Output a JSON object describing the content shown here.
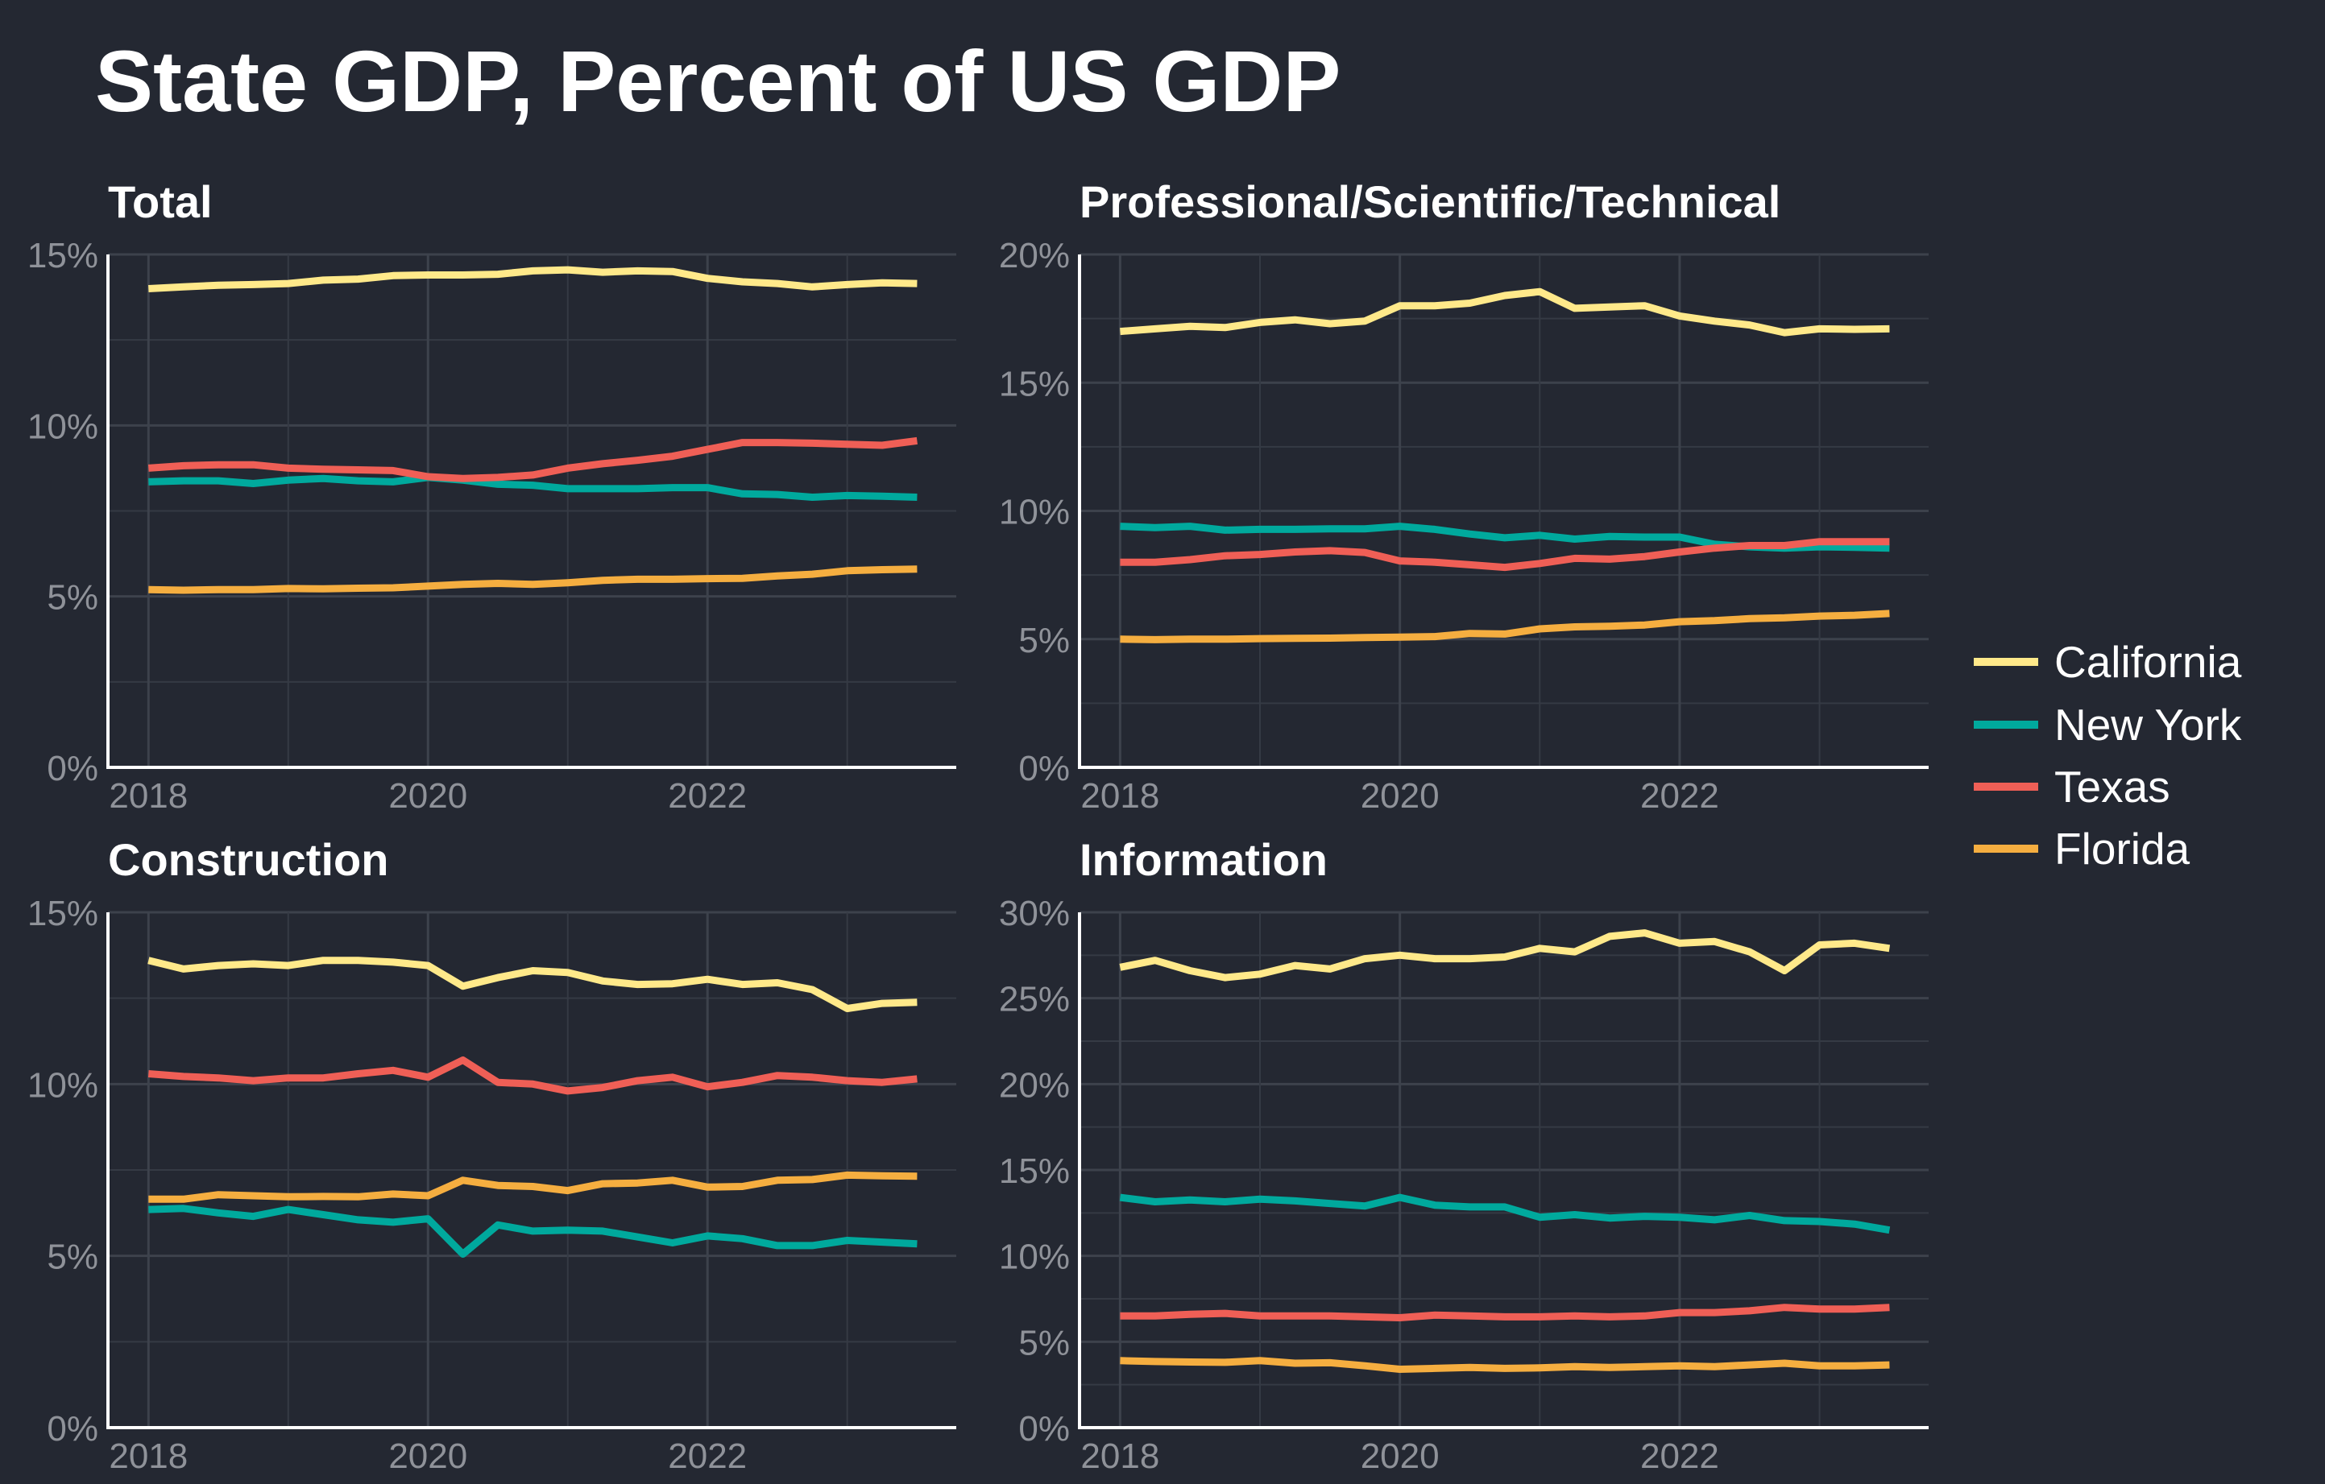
{
  "title": "State GDP, Percent of US GDP",
  "chart_data": {
    "type": "line",
    "legend": {
      "placement": "right",
      "entries": [
        "California",
        "New York",
        "Texas",
        "Florida"
      ]
    },
    "colors": {
      "California": "#ffe98a",
      "New York": "#00a99d",
      "Texas": "#ef5f56",
      "Florida": "#f5ae40"
    },
    "background": "#242832",
    "grid": true,
    "x": [
      2018,
      2018.25,
      2018.5,
      2018.75,
      2019,
      2019.25,
      2019.5,
      2019.75,
      2020,
      2020.25,
      2020.5,
      2020.75,
      2021,
      2021.25,
      2021.5,
      2021.75,
      2022,
      2022.25,
      2022.5,
      2022.75,
      2023,
      2023.25,
      2023.5
    ],
    "xticks": [
      "2018",
      "2020",
      "2022"
    ],
    "panels": [
      {
        "title": "Total",
        "ylim": [
          0,
          15
        ],
        "yticks": [
          "0%",
          "5%",
          "10%",
          "15%"
        ],
        "series": [
          {
            "name": "California",
            "values": [
              14.0,
              14.05,
              14.1,
              14.12,
              14.15,
              14.25,
              14.28,
              14.38,
              14.4,
              14.4,
              14.42,
              14.52,
              14.55,
              14.48,
              14.52,
              14.5,
              14.3,
              14.2,
              14.15,
              14.05,
              14.12,
              14.17,
              14.15
            ]
          },
          {
            "name": "New York",
            "values": [
              8.35,
              8.38,
              8.38,
              8.3,
              8.4,
              8.45,
              8.38,
              8.35,
              8.48,
              8.4,
              8.28,
              8.25,
              8.15,
              8.15,
              8.15,
              8.18,
              8.18,
              8.0,
              7.98,
              7.9,
              7.95,
              7.93,
              7.9
            ]
          },
          {
            "name": "Texas",
            "values": [
              8.75,
              8.82,
              8.85,
              8.85,
              8.75,
              8.72,
              8.7,
              8.68,
              8.5,
              8.45,
              8.48,
              8.55,
              8.75,
              8.88,
              8.98,
              9.1,
              9.3,
              9.5,
              9.5,
              9.48,
              9.45,
              9.42,
              9.55
            ]
          },
          {
            "name": "Florida",
            "values": [
              5.2,
              5.18,
              5.2,
              5.2,
              5.23,
              5.22,
              5.24,
              5.25,
              5.3,
              5.35,
              5.38,
              5.35,
              5.4,
              5.47,
              5.5,
              5.5,
              5.52,
              5.53,
              5.6,
              5.65,
              5.75,
              5.78,
              5.8
            ]
          }
        ]
      },
      {
        "title": "Professional/Scientific/Technical",
        "ylim": [
          0,
          20
        ],
        "yticks": [
          "0%",
          "5%",
          "10%",
          "15%",
          "20%"
        ],
        "series": [
          {
            "name": "California",
            "values": [
              17.0,
              17.1,
              17.2,
              17.15,
              17.35,
              17.45,
              17.3,
              17.4,
              18.0,
              18.0,
              18.1,
              18.4,
              18.55,
              17.9,
              17.95,
              18.0,
              17.6,
              17.4,
              17.25,
              16.95,
              17.1,
              17.08,
              17.1
            ]
          },
          {
            "name": "New York",
            "values": [
              9.4,
              9.35,
              9.4,
              9.25,
              9.28,
              9.28,
              9.3,
              9.3,
              9.4,
              9.28,
              9.1,
              8.95,
              9.05,
              8.9,
              9.0,
              8.98,
              8.98,
              8.7,
              8.6,
              8.55,
              8.6,
              8.58,
              8.55
            ]
          },
          {
            "name": "Texas",
            "values": [
              8.0,
              8.0,
              8.1,
              8.25,
              8.3,
              8.4,
              8.45,
              8.38,
              8.05,
              8.0,
              7.9,
              7.8,
              7.95,
              8.15,
              8.12,
              8.22,
              8.4,
              8.55,
              8.65,
              8.65,
              8.8,
              8.8,
              8.8
            ]
          },
          {
            "name": "Florida",
            "values": [
              5.0,
              4.98,
              5.0,
              5.0,
              5.02,
              5.03,
              5.04,
              5.06,
              5.08,
              5.1,
              5.22,
              5.2,
              5.4,
              5.48,
              5.5,
              5.55,
              5.68,
              5.72,
              5.8,
              5.83,
              5.9,
              5.93,
              6.0
            ]
          }
        ]
      },
      {
        "title": "Construction",
        "ylim": [
          0,
          15
        ],
        "yticks": [
          "0%",
          "5%",
          "10%",
          "15%"
        ],
        "series": [
          {
            "name": "California",
            "values": [
              13.6,
              13.35,
              13.45,
              13.5,
              13.45,
              13.6,
              13.6,
              13.55,
              13.45,
              12.85,
              13.1,
              13.3,
              13.25,
              13.0,
              12.9,
              12.92,
              13.05,
              12.9,
              12.95,
              12.75,
              12.2,
              12.35,
              12.38
            ]
          },
          {
            "name": "New York",
            "values": [
              6.35,
              6.38,
              6.25,
              6.15,
              6.35,
              6.2,
              6.05,
              5.98,
              6.08,
              5.05,
              5.9,
              5.72,
              5.75,
              5.72,
              5.55,
              5.38,
              5.58,
              5.5,
              5.3,
              5.3,
              5.45,
              5.4,
              5.35
            ]
          },
          {
            "name": "Texas",
            "values": [
              10.3,
              10.22,
              10.18,
              10.1,
              10.18,
              10.18,
              10.3,
              10.4,
              10.2,
              10.7,
              10.05,
              10.0,
              9.8,
              9.9,
              10.1,
              10.2,
              9.92,
              10.05,
              10.25,
              10.2,
              10.1,
              10.05,
              10.15
            ]
          },
          {
            "name": "Florida",
            "values": [
              6.65,
              6.65,
              6.78,
              6.75,
              6.72,
              6.73,
              6.72,
              6.8,
              6.75,
              7.2,
              7.05,
              7.02,
              6.9,
              7.1,
              7.12,
              7.2,
              7.0,
              7.02,
              7.2,
              7.22,
              7.35,
              7.33,
              7.32
            ]
          }
        ]
      },
      {
        "title": "Information",
        "ylim": [
          0,
          30
        ],
        "yticks": [
          "0%",
          "5%",
          "10%",
          "15%",
          "20%",
          "25%",
          "30%"
        ],
        "series": [
          {
            "name": "California",
            "values": [
              26.8,
              27.2,
              26.6,
              26.2,
              26.4,
              26.9,
              26.7,
              27.3,
              27.5,
              27.3,
              27.3,
              27.4,
              27.9,
              27.7,
              28.6,
              28.8,
              28.2,
              28.3,
              27.7,
              26.6,
              28.1,
              28.2,
              27.9
            ]
          },
          {
            "name": "New York",
            "values": [
              13.4,
              13.15,
              13.25,
              13.15,
              13.3,
              13.2,
              13.05,
              12.9,
              13.4,
              12.95,
              12.85,
              12.85,
              12.25,
              12.4,
              12.2,
              12.3,
              12.25,
              12.1,
              12.35,
              12.05,
              12.0,
              11.85,
              11.5
            ]
          },
          {
            "name": "Texas",
            "values": [
              6.5,
              6.5,
              6.6,
              6.65,
              6.5,
              6.5,
              6.5,
              6.45,
              6.4,
              6.55,
              6.5,
              6.45,
              6.45,
              6.5,
              6.45,
              6.5,
              6.7,
              6.7,
              6.8,
              7.0,
              6.9,
              6.9,
              7.0
            ]
          },
          {
            "name": "Florida",
            "values": [
              3.9,
              3.85,
              3.82,
              3.8,
              3.9,
              3.75,
              3.78,
              3.6,
              3.4,
              3.45,
              3.5,
              3.45,
              3.48,
              3.55,
              3.5,
              3.55,
              3.6,
              3.55,
              3.65,
              3.75,
              3.6,
              3.6,
              3.65
            ]
          }
        ]
      }
    ]
  }
}
